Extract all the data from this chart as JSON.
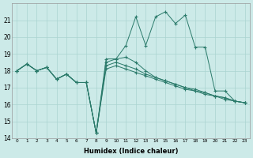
{
  "xlabel": "Humidex (Indice chaleur)",
  "bg_color": "#cceae8",
  "grid_color": "#aad4d0",
  "line_color": "#2a7a6a",
  "xlim": [
    -0.5,
    23.5
  ],
  "ylim": [
    14,
    22
  ],
  "yticks": [
    14,
    15,
    16,
    17,
    18,
    19,
    20,
    21
  ],
  "xticks": [
    0,
    1,
    2,
    3,
    4,
    5,
    6,
    7,
    8,
    9,
    10,
    11,
    12,
    13,
    14,
    15,
    16,
    17,
    18,
    19,
    20,
    21,
    22,
    23
  ],
  "series": [
    [
      18.0,
      18.4,
      18.0,
      18.2,
      17.5,
      17.8,
      17.3,
      17.3,
      14.3,
      18.7,
      18.7,
      19.5,
      21.2,
      19.5,
      21.2,
      21.5,
      20.8,
      21.3,
      19.4,
      19.4,
      16.8,
      16.8,
      16.2,
      16.1
    ],
    [
      18.0,
      18.4,
      18.0,
      18.2,
      17.5,
      17.8,
      17.3,
      17.3,
      14.3,
      18.5,
      18.7,
      18.8,
      18.5,
      18.0,
      17.6,
      17.4,
      17.2,
      17.0,
      16.8,
      16.7,
      16.5,
      16.4,
      16.2,
      16.1
    ],
    [
      18.0,
      18.4,
      18.0,
      18.2,
      17.5,
      17.8,
      17.3,
      17.3,
      14.3,
      18.3,
      18.5,
      18.3,
      18.1,
      17.8,
      17.6,
      17.4,
      17.2,
      17.0,
      16.9,
      16.7,
      16.5,
      16.4,
      16.2,
      16.1
    ],
    [
      18.0,
      18.4,
      18.0,
      18.2,
      17.5,
      17.8,
      17.3,
      17.3,
      14.3,
      18.1,
      18.3,
      18.1,
      17.9,
      17.7,
      17.5,
      17.3,
      17.1,
      16.9,
      16.8,
      16.6,
      16.5,
      16.3,
      16.2,
      16.1
    ]
  ]
}
